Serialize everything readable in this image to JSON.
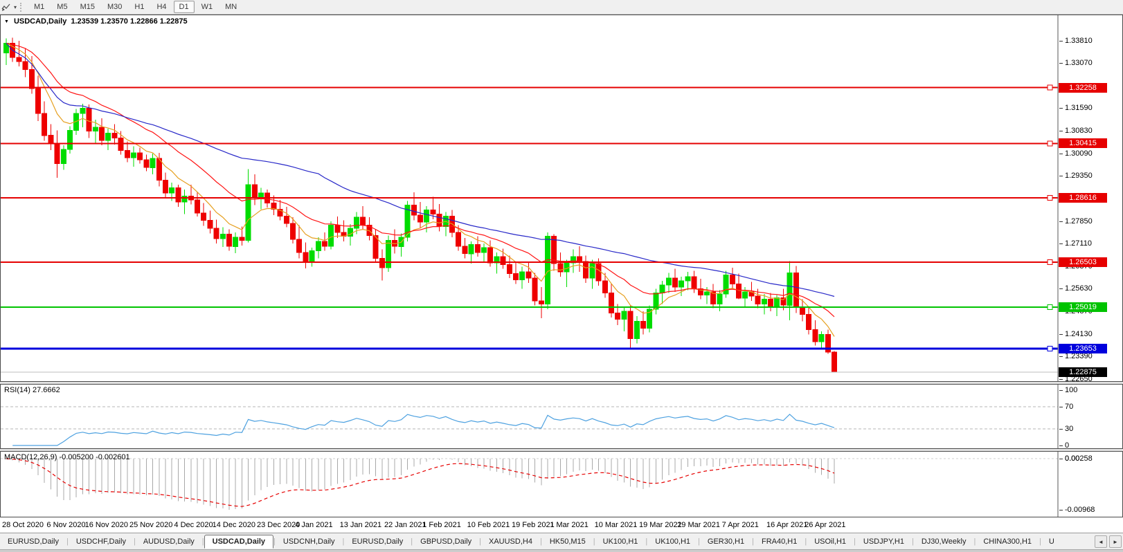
{
  "toolbar": {
    "caret": "▾",
    "timeframes": [
      "M1",
      "M5",
      "M15",
      "M30",
      "H1",
      "H4",
      "D1",
      "W1",
      "MN"
    ],
    "active_timeframe": "D1"
  },
  "chart": {
    "title_caret": "▼",
    "symbol_label": "USDCAD,Daily",
    "ohlc_text": "1.23539 1.23570 1.22866 1.22875",
    "price_range": {
      "max": 1.3462,
      "min": 1.226
    },
    "up_color": "#00dc00",
    "down_color": "#ee0000",
    "y_ticks": [
      "1.33810",
      "1.33070",
      "1.31590",
      "1.30830",
      "1.30090",
      "1.29350",
      "1.27850",
      "1.27110",
      "1.26370",
      "1.25630",
      "1.24870",
      "1.24130",
      "1.23390",
      "1.22650"
    ],
    "line_objects": [
      {
        "price": 1.32258,
        "label": "1.32258",
        "color": "#e60000",
        "width": 2
      },
      {
        "price": 1.30415,
        "label": "1.30415",
        "color": "#e60000",
        "width": 2
      },
      {
        "price": 1.28616,
        "label": "1.28616",
        "color": "#e60000",
        "width": 2
      },
      {
        "price": 1.26503,
        "label": "1.26503",
        "color": "#e60000",
        "width": 2
      },
      {
        "price": 1.25019,
        "label": "1.25019",
        "color": "#00c300",
        "width": 2
      },
      {
        "price": 1.23653,
        "label": "1.23653",
        "color": "#0000dd",
        "width": 3
      }
    ],
    "current_price": {
      "value": 1.22875,
      "label": "1.22875",
      "line_color": "#bdbdbd",
      "label_bg": "#000000"
    },
    "moving_averages": [
      {
        "name": "fast",
        "method": "ema",
        "period": 8,
        "color": "#e6a020"
      },
      {
        "name": "mid",
        "method": "ema",
        "period": 20,
        "color": "#ff1414"
      },
      {
        "name": "slow",
        "method": "sma",
        "period": 50,
        "color": "#2828c8"
      }
    ],
    "x_labels": [
      {
        "index": 0,
        "text": "28 Oct 2020"
      },
      {
        "index": 7,
        "text": "6 Nov 2020"
      },
      {
        "index": 13,
        "text": "16 Nov 2020"
      },
      {
        "index": 20,
        "text": "25 Nov 2020"
      },
      {
        "index": 27,
        "text": "4 Dec 2020"
      },
      {
        "index": 33,
        "text": "14 Dec 2020"
      },
      {
        "index": 40,
        "text": "23 Dec 2020"
      },
      {
        "index": 46,
        "text": "4 Jan 2021"
      },
      {
        "index": 53,
        "text": "13 Jan 2021"
      },
      {
        "index": 60,
        "text": "22 Jan 2021"
      },
      {
        "index": 66,
        "text": "1 Feb 2021"
      },
      {
        "index": 73,
        "text": "10 Feb 2021"
      },
      {
        "index": 80,
        "text": "19 Feb 2021"
      },
      {
        "index": 86,
        "text": "1 Mar 2021"
      },
      {
        "index": 93,
        "text": "10 Mar 2021"
      },
      {
        "index": 100,
        "text": "19 Mar 2021"
      },
      {
        "index": 106,
        "text": "29 Mar 2021"
      },
      {
        "index": 113,
        "text": "7 Apr 2021"
      },
      {
        "index": 120,
        "text": "16 Apr 2021"
      },
      {
        "index": 126,
        "text": "26 Apr 2021"
      }
    ],
    "candles": [
      [
        1.334,
        1.3388,
        1.33,
        1.3372
      ],
      [
        1.3372,
        1.339,
        1.331,
        1.3325
      ],
      [
        1.3325,
        1.338,
        1.3295,
        1.3312
      ],
      [
        1.3312,
        1.3355,
        1.326,
        1.3285
      ],
      [
        1.3285,
        1.333,
        1.3205,
        1.3222
      ],
      [
        1.3222,
        1.3265,
        1.3115,
        1.314
      ],
      [
        1.314,
        1.318,
        1.305,
        1.3068
      ],
      [
        1.3068,
        1.3105,
        1.302,
        1.3042
      ],
      [
        1.3042,
        1.3085,
        1.2928,
        1.2975
      ],
      [
        1.2975,
        1.3035,
        1.2955,
        1.3022
      ],
      [
        1.3022,
        1.3098,
        1.3008,
        1.3085
      ],
      [
        1.3085,
        1.3155,
        1.307,
        1.314
      ],
      [
        1.314,
        1.3172,
        1.3095,
        1.3158
      ],
      [
        1.3158,
        1.317,
        1.306,
        1.3082
      ],
      [
        1.3082,
        1.312,
        1.3042,
        1.3095
      ],
      [
        1.3095,
        1.3125,
        1.3035,
        1.3052
      ],
      [
        1.3052,
        1.309,
        1.302,
        1.3075
      ],
      [
        1.3075,
        1.3105,
        1.3038,
        1.306
      ],
      [
        1.306,
        1.3082,
        1.3005,
        1.3018
      ],
      [
        1.3018,
        1.3048,
        1.298,
        1.2995
      ],
      [
        1.2995,
        1.3032,
        1.2965,
        1.301
      ],
      [
        1.301,
        1.3028,
        1.2975,
        1.2988
      ],
      [
        1.2988,
        1.3005,
        1.295,
        1.2962
      ],
      [
        1.2962,
        1.3008,
        1.294,
        1.2992
      ],
      [
        1.2992,
        1.301,
        1.29,
        1.292
      ],
      [
        1.292,
        1.2945,
        1.286,
        1.2878
      ],
      [
        1.2878,
        1.2912,
        1.2852,
        1.2895
      ],
      [
        1.2895,
        1.2905,
        1.2832,
        1.2848
      ],
      [
        1.2848,
        1.289,
        1.2808,
        1.2868
      ],
      [
        1.2868,
        1.2905,
        1.284,
        1.2855
      ],
      [
        1.2855,
        1.2882,
        1.28,
        1.2812
      ],
      [
        1.2812,
        1.2845,
        1.277,
        1.2788
      ],
      [
        1.2788,
        1.282,
        1.2745,
        1.2762
      ],
      [
        1.2762,
        1.279,
        1.2712,
        1.2728
      ],
      [
        1.2728,
        1.2765,
        1.27,
        1.2742
      ],
      [
        1.2742,
        1.2758,
        1.2688,
        1.2702
      ],
      [
        1.2702,
        1.2748,
        1.268,
        1.2732
      ],
      [
        1.2732,
        1.2768,
        1.2705,
        1.2722
      ],
      [
        1.2722,
        1.2957,
        1.2715,
        1.2905
      ],
      [
        1.2905,
        1.294,
        1.2838,
        1.2862
      ],
      [
        1.2862,
        1.2895,
        1.2825,
        1.2878
      ],
      [
        1.2878,
        1.289,
        1.283,
        1.2845
      ],
      [
        1.2845,
        1.287,
        1.2805,
        1.2825
      ],
      [
        1.2825,
        1.2855,
        1.2788,
        1.2802
      ],
      [
        1.2802,
        1.2832,
        1.2765,
        1.2778
      ],
      [
        1.2778,
        1.2798,
        1.2712,
        1.2725
      ],
      [
        1.2725,
        1.2772,
        1.2662,
        1.2682
      ],
      [
        1.2682,
        1.2715,
        1.263,
        1.2652
      ],
      [
        1.2652,
        1.2698,
        1.2635,
        1.2688
      ],
      [
        1.2688,
        1.2732,
        1.2662,
        1.2718
      ],
      [
        1.2718,
        1.2748,
        1.2688,
        1.2702
      ],
      [
        1.2702,
        1.2785,
        1.2692,
        1.2772
      ],
      [
        1.2772,
        1.28,
        1.273,
        1.2748
      ],
      [
        1.2748,
        1.2788,
        1.2718,
        1.2735
      ],
      [
        1.2735,
        1.2775,
        1.2705,
        1.2762
      ],
      [
        1.2762,
        1.2815,
        1.2742,
        1.2798
      ],
      [
        1.2798,
        1.2835,
        1.2758,
        1.2772
      ],
      [
        1.2772,
        1.2798,
        1.2722,
        1.2738
      ],
      [
        1.2738,
        1.276,
        1.2648,
        1.2662
      ],
      [
        1.2662,
        1.2692,
        1.259,
        1.2632
      ],
      [
        1.2632,
        1.2738,
        1.2618,
        1.2722
      ],
      [
        1.2722,
        1.2758,
        1.2678,
        1.2702
      ],
      [
        1.2702,
        1.2745,
        1.2668,
        1.2732
      ],
      [
        1.2732,
        1.2852,
        1.2718,
        1.2838
      ],
      [
        1.2838,
        1.288,
        1.2788,
        1.2805
      ],
      [
        1.2805,
        1.2848,
        1.2762,
        1.2782
      ],
      [
        1.2782,
        1.2835,
        1.2748,
        1.2822
      ],
      [
        1.2822,
        1.2865,
        1.2792,
        1.2808
      ],
      [
        1.2808,
        1.2842,
        1.2752,
        1.2768
      ],
      [
        1.2768,
        1.2815,
        1.2735,
        1.2802
      ],
      [
        1.2802,
        1.2822,
        1.2732,
        1.2748
      ],
      [
        1.2748,
        1.2772,
        1.2688,
        1.2702
      ],
      [
        1.2702,
        1.273,
        1.2662,
        1.2678
      ],
      [
        1.2678,
        1.2718,
        1.2645,
        1.2708
      ],
      [
        1.2708,
        1.2735,
        1.2668,
        1.2682
      ],
      [
        1.2682,
        1.2712,
        1.2652,
        1.2698
      ],
      [
        1.2698,
        1.2722,
        1.2635,
        1.2648
      ],
      [
        1.2648,
        1.2682,
        1.2612,
        1.2668
      ],
      [
        1.2668,
        1.2695,
        1.2628,
        1.2642
      ],
      [
        1.2642,
        1.2672,
        1.2598,
        1.2612
      ],
      [
        1.2612,
        1.2648,
        1.2578,
        1.2592
      ],
      [
        1.2592,
        1.2635,
        1.2562,
        1.2618
      ],
      [
        1.2618,
        1.2648,
        1.2582,
        1.2598
      ],
      [
        1.2598,
        1.2615,
        1.2508,
        1.2522
      ],
      [
        1.2522,
        1.2568,
        1.2465,
        1.2512
      ],
      [
        1.2512,
        1.2748,
        1.2495,
        1.2735
      ],
      [
        1.2735,
        1.2742,
        1.2622,
        1.2645
      ],
      [
        1.2645,
        1.2682,
        1.2602,
        1.2618
      ],
      [
        1.2618,
        1.2658,
        1.2568,
        1.2648
      ],
      [
        1.2648,
        1.2692,
        1.2615,
        1.2668
      ],
      [
        1.2668,
        1.2702,
        1.2618,
        1.2652
      ],
      [
        1.2652,
        1.2672,
        1.2582,
        1.2598
      ],
      [
        1.2598,
        1.2658,
        1.2562,
        1.2645
      ],
      [
        1.2645,
        1.2662,
        1.2572,
        1.2588
      ],
      [
        1.2588,
        1.2615,
        1.2532,
        1.2548
      ],
      [
        1.2548,
        1.2578,
        1.2468,
        1.2482
      ],
      [
        1.2482,
        1.2512,
        1.2442,
        1.2462
      ],
      [
        1.2462,
        1.2502,
        1.2422,
        1.2488
      ],
      [
        1.2488,
        1.2508,
        1.2365,
        1.2398
      ],
      [
        1.2398,
        1.2472,
        1.2382,
        1.2455
      ],
      [
        1.2455,
        1.2488,
        1.2412,
        1.2432
      ],
      [
        1.2432,
        1.2508,
        1.2418,
        1.2495
      ],
      [
        1.2495,
        1.2562,
        1.2478,
        1.2548
      ],
      [
        1.2548,
        1.2588,
        1.2512,
        1.2575
      ],
      [
        1.2575,
        1.2615,
        1.2548,
        1.2598
      ],
      [
        1.2598,
        1.2628,
        1.2552,
        1.2568
      ],
      [
        1.2568,
        1.2602,
        1.2538,
        1.2588
      ],
      [
        1.2588,
        1.2618,
        1.2558,
        1.2602
      ],
      [
        1.2602,
        1.2622,
        1.2548,
        1.2562
      ],
      [
        1.2562,
        1.2595,
        1.2528,
        1.2542
      ],
      [
        1.2542,
        1.2568,
        1.2512,
        1.2552
      ],
      [
        1.2552,
        1.2578,
        1.2498,
        1.2512
      ],
      [
        1.2512,
        1.2558,
        1.2488,
        1.2545
      ],
      [
        1.2545,
        1.2622,
        1.2532,
        1.2608
      ],
      [
        1.2608,
        1.2632,
        1.2562,
        1.2578
      ],
      [
        1.2578,
        1.2612,
        1.2528,
        1.2532
      ],
      [
        1.2532,
        1.2568,
        1.2502,
        1.2552
      ],
      [
        1.2552,
        1.2585,
        1.2522,
        1.2538
      ],
      [
        1.2538,
        1.2562,
        1.2498,
        1.2512
      ],
      [
        1.2512,
        1.2545,
        1.2478,
        1.2528
      ],
      [
        1.2528,
        1.2548,
        1.2488,
        1.2502
      ],
      [
        1.2502,
        1.2542,
        1.2472,
        1.2532
      ],
      [
        1.2532,
        1.2562,
        1.2492,
        1.2508
      ],
      [
        1.2508,
        1.2654,
        1.2459,
        1.2615
      ],
      [
        1.2615,
        1.2638,
        1.2482,
        1.2502
      ],
      [
        1.2502,
        1.2528,
        1.2455,
        1.2478
      ],
      [
        1.2478,
        1.2502,
        1.2412,
        1.2428
      ],
      [
        1.2428,
        1.2458,
        1.2375,
        1.2388
      ],
      [
        1.2388,
        1.2422,
        1.2365,
        1.2412
      ],
      [
        1.2412,
        1.2428,
        1.2348,
        1.23539
      ],
      [
        1.23539,
        1.2357,
        1.22866,
        1.22875
      ]
    ]
  },
  "rsi": {
    "label": "RSI(14) 27.6662",
    "period": 14,
    "line_color": "#4da1e0",
    "levels": [
      70,
      30
    ],
    "ticks": [
      "100",
      "70",
      "30",
      "0"
    ]
  },
  "macd": {
    "label": "MACD(12,26,9) -0.005200 -0.002601",
    "fast": 12,
    "slow": 26,
    "signal": 9,
    "bar_color": "#a8a8a8",
    "signal_color": "#e60000",
    "ticks": {
      "max": "0.00258",
      "zero": "0.00",
      "min": "-0.00968"
    }
  },
  "bottom_tabs": {
    "items": [
      {
        "label": "EURUSD,Daily"
      },
      {
        "label": "USDCHF,Daily"
      },
      {
        "label": "AUDUSD,Daily"
      },
      {
        "label": "USDCAD,Daily",
        "active": true
      },
      {
        "label": "USDCNH,Daily"
      },
      {
        "label": "EURUSD,Daily"
      },
      {
        "label": "GBPUSD,Daily"
      },
      {
        "label": "XAUUSD,H4"
      },
      {
        "label": "HK50,M15"
      },
      {
        "label": "UK100,H1"
      },
      {
        "label": "UK100,H1"
      },
      {
        "label": "GER30,H1"
      },
      {
        "label": "FRA40,H1"
      },
      {
        "label": "USOil,H1"
      },
      {
        "label": "USDJPY,H1"
      },
      {
        "label": "DJ30,Weekly"
      },
      {
        "label": "CHINA300,H1"
      },
      {
        "label": "U"
      }
    ],
    "scroll_left": "◄",
    "scroll_right": "►"
  }
}
